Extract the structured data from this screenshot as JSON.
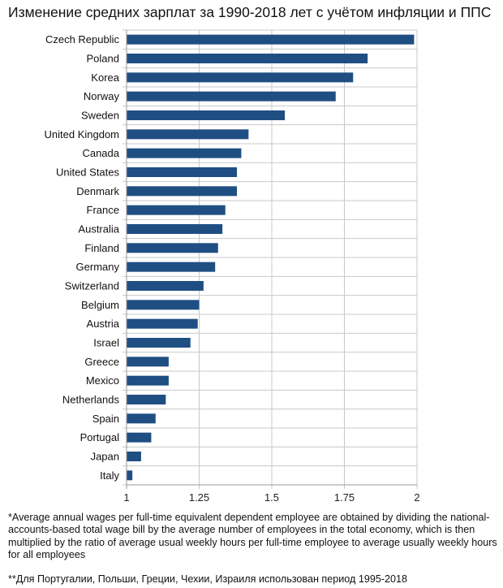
{
  "title": "Изменение средних зарплат за 1990-2018 лет с учётом инфляции и ППС",
  "footnotes": {
    "note1": "*Average annual wages per full-time equivalent dependent employee are obtained by dividing the national-accounts-based total wage bill by the average number of employees in the total economy, which is then multiplied by the ratio of average usual weekly hours per full-time employee to average usually weekly hours for all employees",
    "note2": "**Для Португалии, Польши, Греции, Чехии, Израиля использован период 1995-2018"
  },
  "chart_data": {
    "type": "bar",
    "orientation": "horizontal",
    "title": "Изменение средних зарплат за 1990-2018 лет с учётом инфляции и ППС",
    "xlabel": "",
    "ylabel": "",
    "xlim": [
      1,
      2
    ],
    "xticks": [
      "1",
      "1.25",
      "1.5",
      "1.75",
      "2"
    ],
    "grid": true,
    "bar_color": "#1f4e83",
    "grid_color": "#c8c8c8",
    "categories": [
      "Czech Republic",
      "Poland",
      "Korea",
      "Norway",
      "Sweden",
      "United Kingdom",
      "Canada",
      "United States",
      "Denmark",
      "France",
      "Australia",
      "Finland",
      "Germany",
      "Switzerland",
      "Belgium",
      "Austria",
      "Israel",
      "Greece",
      "Mexico",
      "Netherlands",
      "Spain",
      "Portugal",
      "Japan",
      "Italy"
    ],
    "values": [
      1.99,
      1.83,
      1.78,
      1.72,
      1.545,
      1.42,
      1.395,
      1.38,
      1.38,
      1.34,
      1.33,
      1.315,
      1.305,
      1.265,
      1.25,
      1.245,
      1.22,
      1.145,
      1.145,
      1.135,
      1.1,
      1.085,
      1.05,
      1.02
    ]
  }
}
